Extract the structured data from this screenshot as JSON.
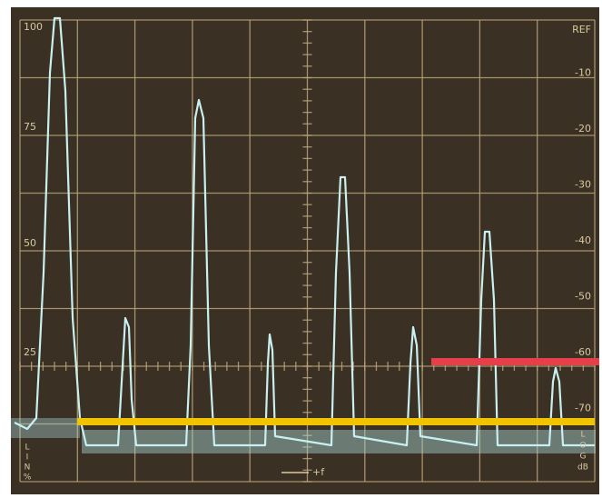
{
  "left_scale": [
    "100",
    "75",
    "50",
    "25"
  ],
  "left_unit": [
    "L",
    "I",
    "N",
    "%"
  ],
  "right_scale": [
    "REF",
    "-10",
    "-20",
    "-30",
    "-40",
    "-50",
    "-60",
    "-70"
  ],
  "right_unit": [
    "L",
    "O",
    "G",
    "dB"
  ],
  "frequency_label": "+f"
}
